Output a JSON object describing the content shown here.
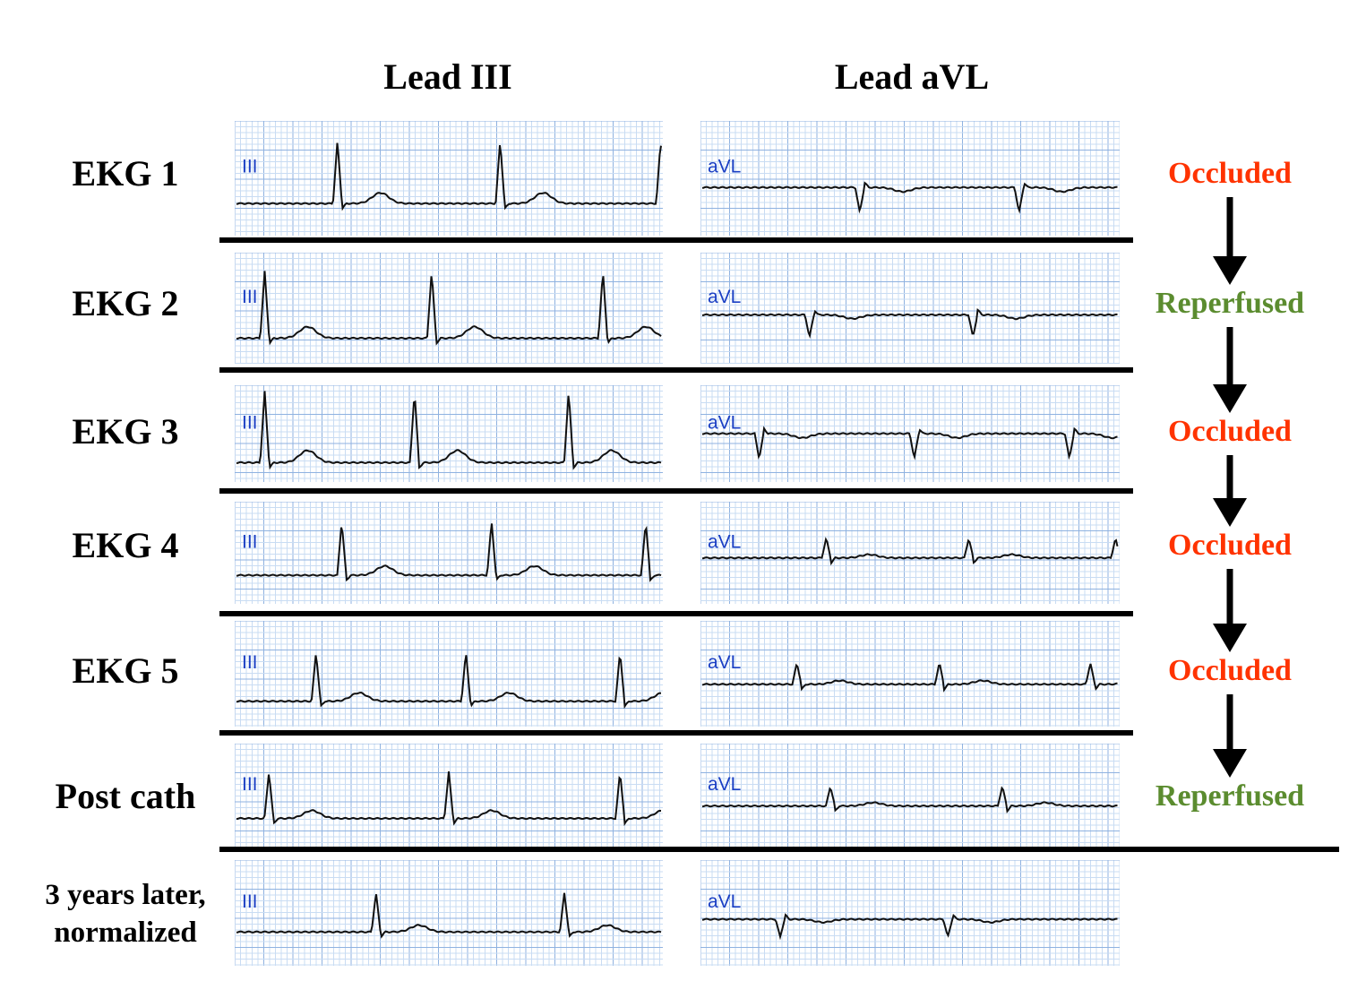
{
  "columns": [
    "Lead III",
    "Lead aVL"
  ],
  "rows": [
    {
      "label": "EKG 1",
      "leads": [
        "III",
        "aVL"
      ],
      "status": {
        "text": "Occluded",
        "color": "#ff3300"
      }
    },
    {
      "label": "EKG 2",
      "leads": [
        "III",
        "aVL"
      ],
      "status": {
        "text": "Reperfused",
        "color": "#5b8c2f"
      }
    },
    {
      "label": "EKG 3",
      "leads": [
        "III",
        "aVL"
      ],
      "status": {
        "text": "Occluded",
        "color": "#ff3300"
      }
    },
    {
      "label": "EKG 4",
      "leads": [
        "III",
        "aVL"
      ],
      "status": {
        "text": "Occluded",
        "color": "#ff3300"
      }
    },
    {
      "label": "EKG 5",
      "leads": [
        "III",
        "aVL"
      ],
      "status": {
        "text": "Occluded",
        "color": "#ff3300"
      }
    },
    {
      "label": "Post cath",
      "leads": [
        "III",
        "aVL"
      ],
      "status": {
        "text": "Reperfused",
        "color": "#5b8c2f"
      }
    },
    {
      "label": "3 years later, normalized",
      "leads": [
        "III",
        "aVL"
      ]
    }
  ]
}
